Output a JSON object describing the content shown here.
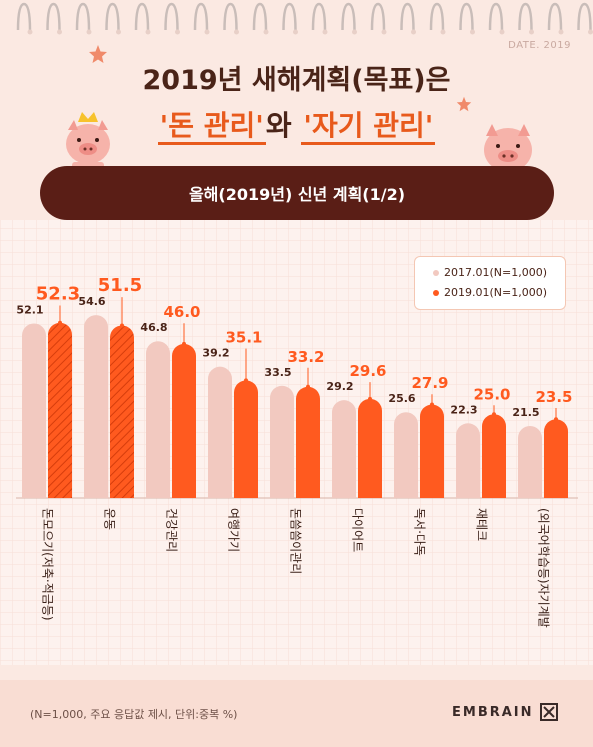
{
  "header": {
    "date": "DATE. 2019",
    "title_line1": "2019년 새해계획(목표)은",
    "highlight1": "'돈 관리'",
    "connector": "와",
    "highlight2": "'자기 관리'",
    "banner": "올해(2019년) 신년 계획(1/2)"
  },
  "legend": {
    "items": [
      {
        "label": "2017.01(N=1,000)",
        "color": "#f2c9c0"
      },
      {
        "label": "2019.01(N=1,000)",
        "color": "#ff5a1f"
      }
    ]
  },
  "chart_data": {
    "type": "bar",
    "categories": [
      "돈모으기(저축·적금등)",
      "운동",
      "건강관리",
      "여행가기",
      "돈씀씀이관리",
      "다이어트",
      "독서·다독",
      "재테크",
      "(외국어학습등)자기계발"
    ],
    "series": [
      {
        "name": "2017.01(N=1,000)",
        "values": [
          52.1,
          54.6,
          46.8,
          39.2,
          33.5,
          29.2,
          25.6,
          22.3,
          21.5
        ]
      },
      {
        "name": "2019.01(N=1,000)",
        "values": [
          52.3,
          51.5,
          46.0,
          35.1,
          33.2,
          29.6,
          27.9,
          25.0,
          23.5
        ]
      }
    ],
    "highlight_categories": [
      0,
      1
    ]
  },
  "footer": {
    "note": "(N=1,000, 주요 응답값 제시, 단위:중복 %)",
    "brand": "EMBRAIN"
  }
}
